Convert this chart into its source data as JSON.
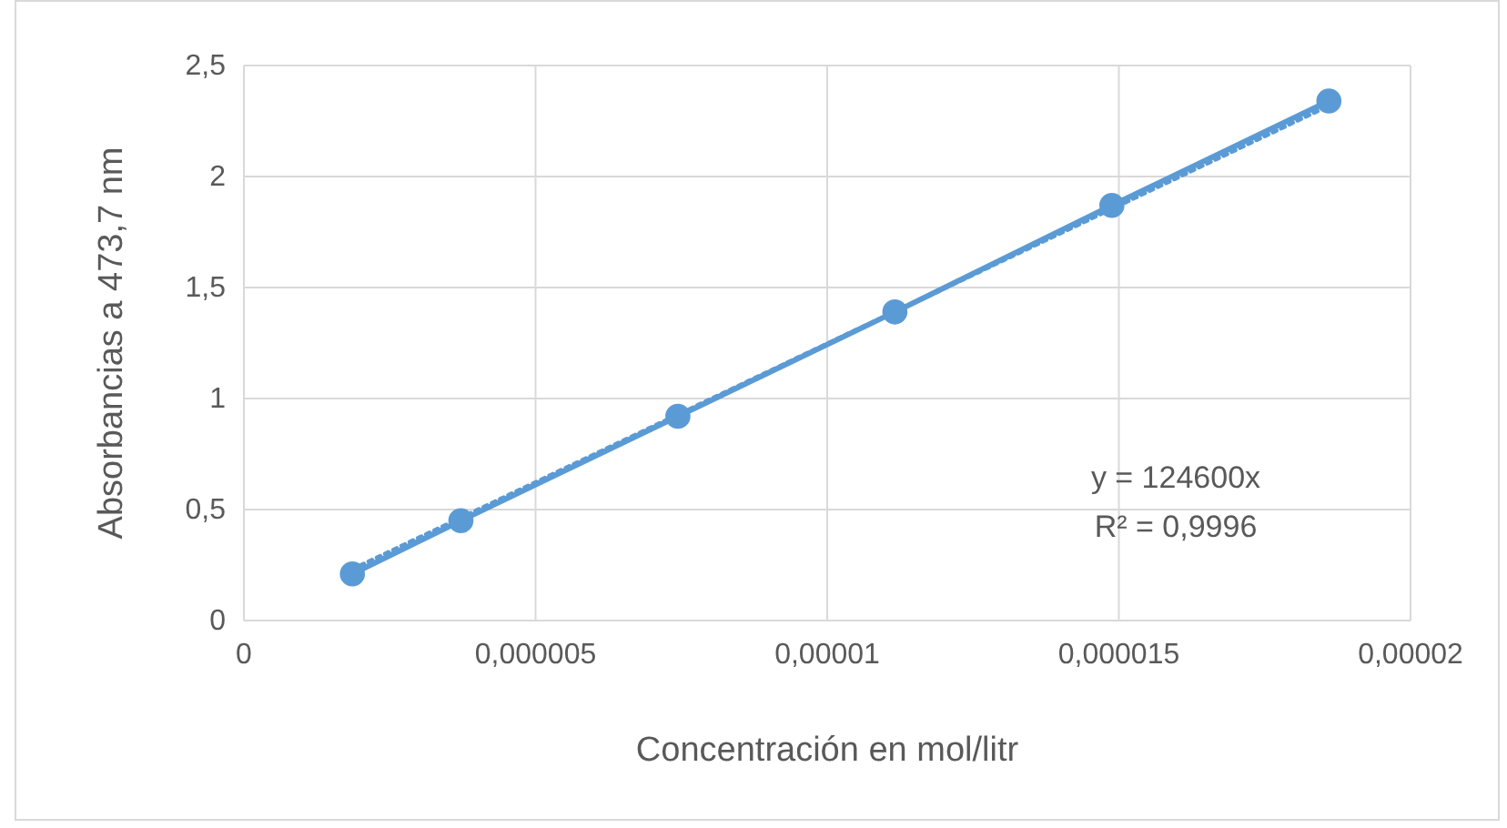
{
  "chart_data": {
    "type": "scatter",
    "xlabel": "Concentración en mol/litr",
    "ylabel": "Absorbancias a 473,7 nm",
    "x": [
      1.86e-06,
      3.72e-06,
      7.44e-06,
      1.116e-05,
      1.488e-05,
      1.86e-05
    ],
    "series": [
      {
        "type": "line",
        "color": "#5b9bd5",
        "marker": "circle",
        "line_style": "solid",
        "values": [
          0.21,
          0.45,
          0.92,
          1.39,
          1.87,
          2.34
        ]
      },
      {
        "type": "line",
        "color": "#5b9bd5",
        "marker": "none",
        "line_style": "dotted",
        "x": [
          1.86e-06,
          1.86e-05
        ],
        "values": [
          0.23,
          2.32
        ]
      }
    ],
    "xlim": [
      0,
      2e-05
    ],
    "xticks": [
      0,
      {
        "value": 5e-06,
        "label": "0,000005"
      },
      {
        "value": 1e-05,
        "label": "0,00001"
      },
      {
        "value": 1.5e-05,
        "label": "0,000015"
      },
      {
        "value": 2e-05,
        "label": "0,00002"
      }
    ],
    "ylim": [
      0,
      2.5
    ],
    "yticks": [
      0,
      {
        "value": 0.5,
        "label": "0,5"
      },
      1,
      {
        "value": 1.5,
        "label": "1,5"
      },
      2,
      {
        "value": 2.5,
        "label": "2,5"
      }
    ],
    "grid": true,
    "annotations": [
      "y = 124600x",
      "R² = 0,9996"
    ]
  }
}
